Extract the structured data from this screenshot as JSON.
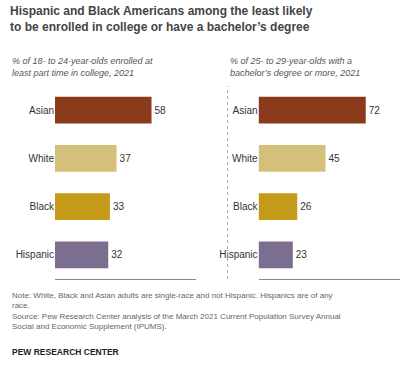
{
  "title": "Hispanic and Black Americans among the least likely\nto be enrolled in college or have a bachelor’s degree",
  "chart_data": [
    {
      "type": "bar",
      "orientation": "horizontal",
      "subtitle": "% of 18- to 24-year-olds enrolled at\nleast part time in college, 2021",
      "categories": [
        "Asian",
        "White",
        "Black",
        "Hispanic"
      ],
      "values": [
        58,
        37,
        33,
        32
      ],
      "colors": [
        "#8B3A1C",
        "#D4C07A",
        "#C49A18",
        "#7B6E8E"
      ],
      "xlim": [
        0,
        85
      ],
      "data_labels": true,
      "tick_labels": "y",
      "grid": false
    },
    {
      "type": "bar",
      "orientation": "horizontal",
      "subtitle": "% of 25- to 29-year-olds with a\nbachelor’s degree or more, 2021",
      "categories": [
        "Asian",
        "White",
        "Black",
        "Hispanic"
      ],
      "values": [
        72,
        45,
        26,
        23
      ],
      "colors": [
        "#8B3A1C",
        "#D4C07A",
        "#C49A18",
        "#7B6E8E"
      ],
      "xlim": [
        0,
        95
      ],
      "data_labels": true,
      "tick_labels": "y",
      "grid": false
    }
  ],
  "note": [
    "Note: White, Black and Asian adults are single-race and not Hispanic. Hispanics are of any",
    "race.",
    "Source: Pew Research Center analysis of the March 2021 Current Population Survey Annual",
    "Social and Economic Supplement (IPUMS)."
  ],
  "source": "PEW RESEARCH CENTER"
}
